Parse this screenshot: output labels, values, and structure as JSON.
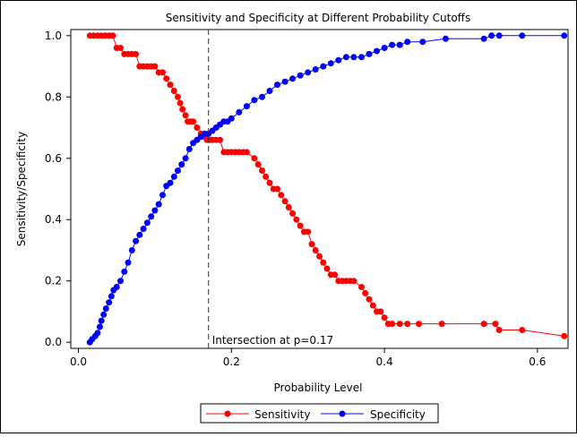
{
  "chart_data": {
    "type": "line",
    "title": "Sensitivity and Specificity at Different Probability Cutoffs",
    "xlabel": "Probability Level",
    "ylabel": "Sensitivity/Specificity",
    "xlim": [
      -0.01,
      0.64
    ],
    "ylim": [
      -0.02,
      1.02
    ],
    "x_ticks": [
      0.0,
      0.2,
      0.4,
      0.6
    ],
    "x_tick_labels": [
      "0.0",
      "0.2",
      "0.4",
      "0.6"
    ],
    "y_ticks": [
      0.0,
      0.2,
      0.4,
      0.6,
      0.8,
      1.0
    ],
    "y_tick_labels": [
      "0.0",
      "0.2",
      "0.4",
      "0.6",
      "0.8",
      "1.0"
    ],
    "grid": false,
    "legend_placement": "bottom-center-outside",
    "series": [
      {
        "name": "Sensitivity",
        "color": "#ff0000",
        "x": [
          0.015,
          0.02,
          0.025,
          0.03,
          0.035,
          0.04,
          0.045,
          0.05,
          0.055,
          0.06,
          0.065,
          0.07,
          0.075,
          0.08,
          0.085,
          0.09,
          0.095,
          0.1,
          0.105,
          0.11,
          0.115,
          0.12,
          0.125,
          0.13,
          0.133,
          0.136,
          0.14,
          0.143,
          0.147,
          0.15,
          0.155,
          0.16,
          0.165,
          0.168,
          0.17,
          0.172,
          0.175,
          0.18,
          0.185,
          0.19,
          0.195,
          0.2,
          0.205,
          0.21,
          0.215,
          0.22,
          0.23,
          0.235,
          0.24,
          0.245,
          0.25,
          0.255,
          0.26,
          0.265,
          0.27,
          0.275,
          0.28,
          0.285,
          0.29,
          0.295,
          0.3,
          0.305,
          0.31,
          0.315,
          0.32,
          0.325,
          0.33,
          0.335,
          0.34,
          0.345,
          0.35,
          0.355,
          0.36,
          0.37,
          0.375,
          0.38,
          0.385,
          0.39,
          0.395,
          0.4,
          0.405,
          0.41,
          0.42,
          0.43,
          0.445,
          0.475,
          0.53,
          0.545,
          0.55,
          0.58,
          0.635
        ],
        "y": [
          1.0,
          1.0,
          1.0,
          1.0,
          1.0,
          1.0,
          1.0,
          0.96,
          0.96,
          0.94,
          0.94,
          0.94,
          0.94,
          0.9,
          0.9,
          0.9,
          0.9,
          0.9,
          0.88,
          0.88,
          0.86,
          0.84,
          0.82,
          0.8,
          0.78,
          0.76,
          0.74,
          0.72,
          0.72,
          0.72,
          0.7,
          0.68,
          0.67,
          0.66,
          0.66,
          0.66,
          0.66,
          0.66,
          0.66,
          0.62,
          0.62,
          0.62,
          0.62,
          0.62,
          0.62,
          0.62,
          0.6,
          0.58,
          0.56,
          0.54,
          0.52,
          0.5,
          0.5,
          0.48,
          0.46,
          0.44,
          0.42,
          0.4,
          0.38,
          0.36,
          0.36,
          0.32,
          0.3,
          0.28,
          0.26,
          0.24,
          0.22,
          0.22,
          0.2,
          0.2,
          0.2,
          0.2,
          0.2,
          0.18,
          0.16,
          0.14,
          0.12,
          0.1,
          0.1,
          0.08,
          0.06,
          0.06,
          0.06,
          0.06,
          0.06,
          0.06,
          0.06,
          0.06,
          0.04,
          0.04,
          0.02
        ]
      },
      {
        "name": "Specificity",
        "color": "#0000ff",
        "x": [
          0.015,
          0.018,
          0.022,
          0.025,
          0.028,
          0.03,
          0.033,
          0.036,
          0.04,
          0.043,
          0.046,
          0.05,
          0.055,
          0.06,
          0.065,
          0.07,
          0.075,
          0.08,
          0.085,
          0.09,
          0.095,
          0.1,
          0.105,
          0.11,
          0.115,
          0.12,
          0.125,
          0.13,
          0.135,
          0.14,
          0.145,
          0.15,
          0.155,
          0.16,
          0.165,
          0.17,
          0.175,
          0.18,
          0.185,
          0.19,
          0.195,
          0.2,
          0.21,
          0.22,
          0.23,
          0.24,
          0.25,
          0.26,
          0.27,
          0.28,
          0.29,
          0.3,
          0.31,
          0.32,
          0.33,
          0.34,
          0.35,
          0.36,
          0.37,
          0.38,
          0.39,
          0.4,
          0.41,
          0.42,
          0.43,
          0.45,
          0.48,
          0.53,
          0.54,
          0.55,
          0.58,
          0.635
        ],
        "y": [
          0.0,
          0.01,
          0.02,
          0.03,
          0.05,
          0.07,
          0.09,
          0.11,
          0.13,
          0.15,
          0.17,
          0.18,
          0.2,
          0.23,
          0.26,
          0.3,
          0.33,
          0.35,
          0.37,
          0.39,
          0.41,
          0.43,
          0.45,
          0.48,
          0.51,
          0.52,
          0.54,
          0.56,
          0.58,
          0.6,
          0.63,
          0.65,
          0.66,
          0.67,
          0.68,
          0.68,
          0.69,
          0.7,
          0.71,
          0.72,
          0.72,
          0.73,
          0.75,
          0.77,
          0.79,
          0.8,
          0.82,
          0.84,
          0.85,
          0.86,
          0.87,
          0.88,
          0.89,
          0.9,
          0.91,
          0.92,
          0.93,
          0.93,
          0.93,
          0.94,
          0.95,
          0.96,
          0.97,
          0.97,
          0.98,
          0.98,
          0.99,
          0.99,
          1.0,
          1.0,
          1.0,
          1.0
        ]
      }
    ],
    "reference_line": {
      "x": 0.17,
      "style": "dashed",
      "color": "#333333"
    },
    "annotation": {
      "text": "Intersection at p=0.17",
      "x": 0.17,
      "y": 0.0
    }
  }
}
